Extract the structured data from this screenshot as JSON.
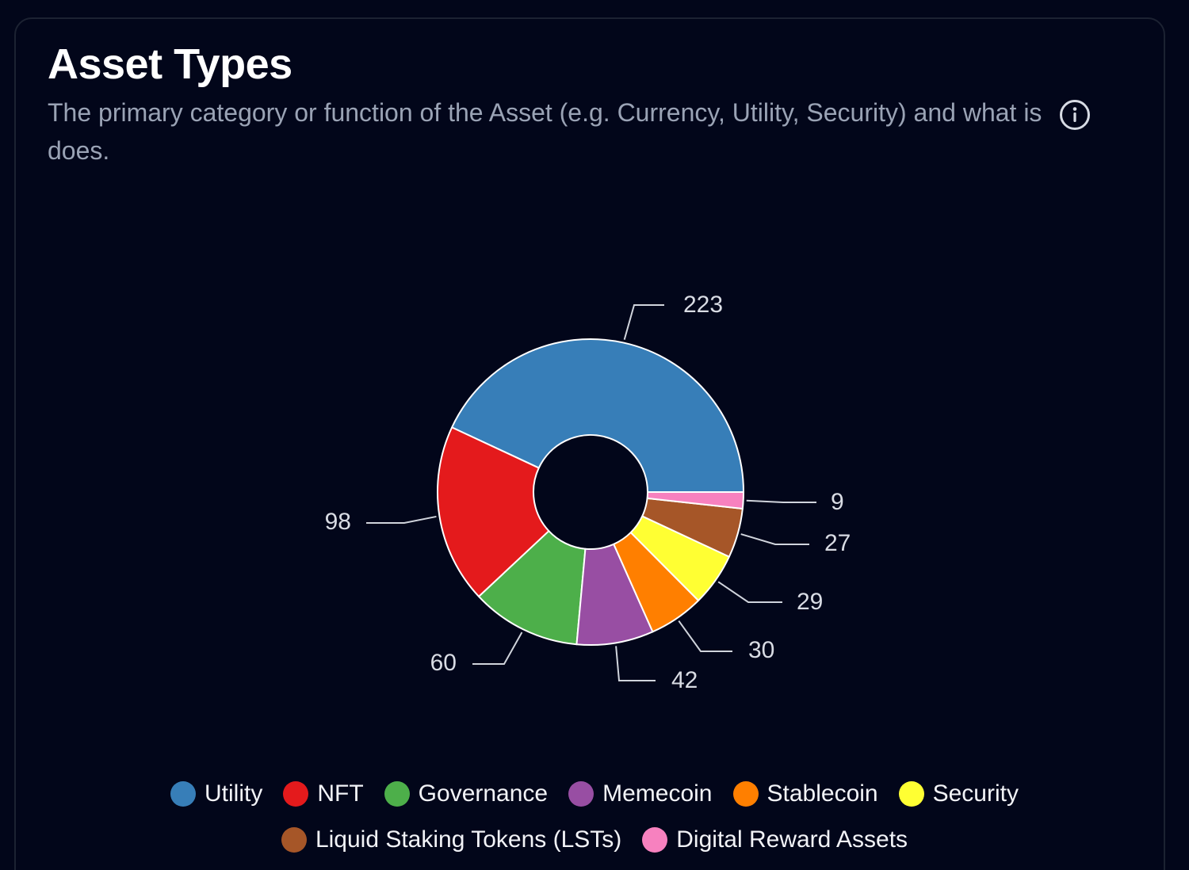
{
  "card": {
    "title": "Asset Types",
    "subtitle": "The primary category or function of the Asset (e.g. Currency, Utility, Security) and what is does.",
    "info_icon": "info-circle-icon"
  },
  "chart_data": {
    "type": "pie",
    "donut": true,
    "legend_position": "bottom",
    "categories": [
      "Utility",
      "NFT",
      "Governance",
      "Memecoin",
      "Stablecoin",
      "Security",
      "Liquid Staking Tokens (LSTs)",
      "Digital Reward Assets"
    ],
    "values": [
      223,
      98,
      60,
      42,
      30,
      29,
      27,
      9
    ],
    "data_labels": [
      "223",
      "98",
      "60",
      "42",
      "30",
      "29",
      "27",
      "9"
    ],
    "colors": [
      "#377eb8",
      "#e41a1c",
      "#4daf4a",
      "#984ea3",
      "#ff7f00",
      "#ffff33",
      "#a65628",
      "#f781bf"
    ]
  }
}
